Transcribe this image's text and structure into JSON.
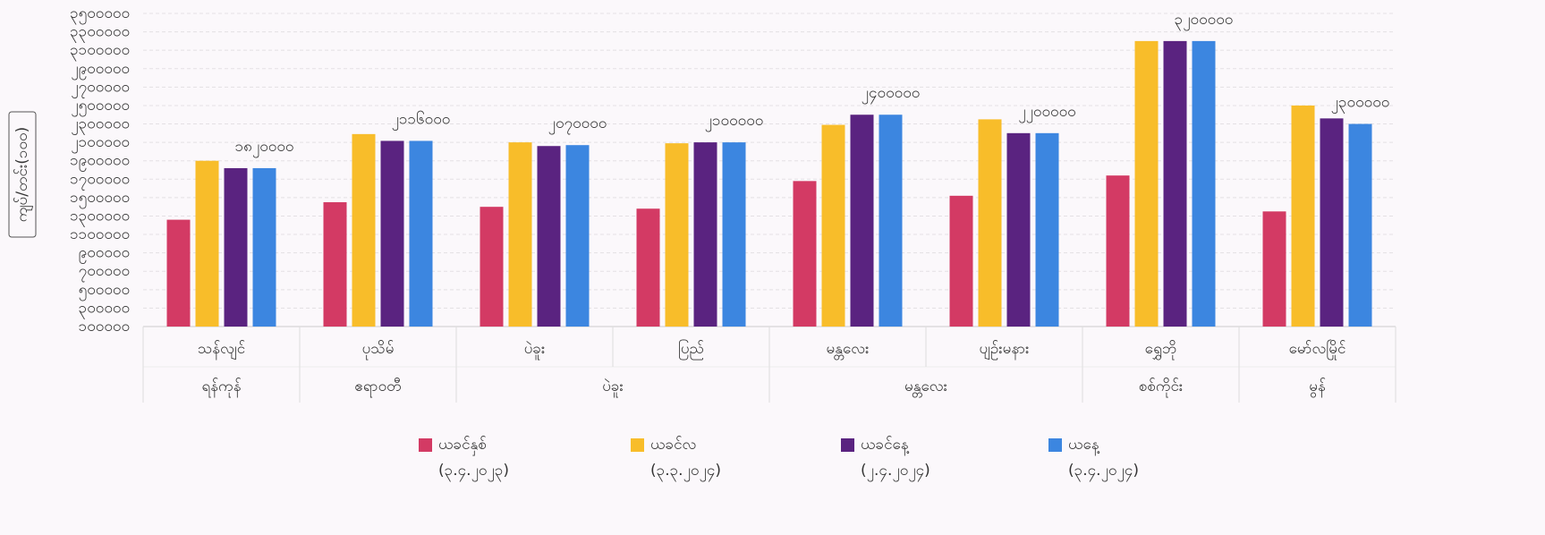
{
  "chart_data": {
    "type": "bar",
    "y_label": "ကျပ်/တင်း(၁၀၀)",
    "categories": [
      "သန်လျင်",
      "ပုသိမ်",
      "ပဲခူး",
      "ပြည်",
      "မန္တလေး",
      "ပျဉ်းမနား",
      "ရွှေဘို",
      "မော်လမြိုင်"
    ],
    "groups": [
      {
        "label": "ရန်ကုန်",
        "span": 1
      },
      {
        "label": "ဧရာဝတီ",
        "span": 1
      },
      {
        "label": "ပဲခူး",
        "span": 2
      },
      {
        "label": "မန္တလေး",
        "span": 2
      },
      {
        "label": "စစ်ကိုင်း",
        "span": 1
      },
      {
        "label": "မွန်",
        "span": 1
      }
    ],
    "series": [
      {
        "name": "ယခင်နှစ်",
        "date": "(၃.၄.၂၀၂၃)",
        "color": "#d33a64",
        "values": [
          1260000,
          1450000,
          1400000,
          1380000,
          1680000,
          1520000,
          1740000,
          1350000
        ]
      },
      {
        "name": "ယခင်လ",
        "date": "(၃.၃.၂၀၂၄)",
        "color": "#f8bd2a",
        "values": [
          1900000,
          2190000,
          2100000,
          2090000,
          2290000,
          2350000,
          3200000,
          2500000
        ]
      },
      {
        "name": "ယခင်နေ့",
        "date": "(၂.၄.၂၀၂၄)",
        "color": "#5a2380",
        "values": [
          1820000,
          2116000,
          2060000,
          2100000,
          2400000,
          2200000,
          3200000,
          2360000
        ]
      },
      {
        "name": "ယနေ့",
        "date": "(၃.၄.၂၀၂၄)",
        "color": "#3c86e0",
        "values": [
          1820000,
          2116000,
          2070000,
          2100000,
          2400000,
          2200000,
          3200000,
          2300000
        ],
        "value_labels": [
          "၁၈၂၀၀၀၀",
          "၂၁၁၆၀၀၀",
          "၂၀၇၀၀၀၀",
          "၂၁၀၀၀၀၀",
          "၂၄၀၀၀၀၀",
          "၂၂၀၀၀၀၀",
          "၃၂၀၀၀၀၀",
          "၂၃၀၀၀၀၀"
        ]
      }
    ],
    "ylim": [
      100000,
      3500000
    ],
    "yticks": [
      {
        "value": 100000,
        "label": "၁၀၀၀၀၀"
      },
      {
        "value": 300000,
        "label": "၃၀၀၀၀၀"
      },
      {
        "value": 500000,
        "label": "၅၀၀၀၀၀"
      },
      {
        "value": 700000,
        "label": "၇၀၀၀၀၀"
      },
      {
        "value": 900000,
        "label": "၉၀၀၀၀၀"
      },
      {
        "value": 1100000,
        "label": "၁၁၀၀၀၀၀"
      },
      {
        "value": 1300000,
        "label": "၁၃၀၀၀၀၀"
      },
      {
        "value": 1500000,
        "label": "၁၅၀၀၀၀၀"
      },
      {
        "value": 1700000,
        "label": "၁၇၀၀၀၀၀"
      },
      {
        "value": 1900000,
        "label": "၁၉၀၀၀၀၀"
      },
      {
        "value": 2100000,
        "label": "၂၁၀၀၀၀၀"
      },
      {
        "value": 2300000,
        "label": "၂၃၀၀၀၀၀"
      },
      {
        "value": 2500000,
        "label": "၂၅၀၀၀၀၀"
      },
      {
        "value": 2700000,
        "label": "၂၇၀၀၀၀၀"
      },
      {
        "value": 2900000,
        "label": "၂၉၀၀၀၀၀"
      },
      {
        "value": 3100000,
        "label": "၃၁၀၀၀၀၀"
      },
      {
        "value": 3300000,
        "label": "၃၃၀၀၀၀၀"
      },
      {
        "value": 3500000,
        "label": "၃၅၀၀၀၀၀"
      }
    ],
    "grid": true
  }
}
